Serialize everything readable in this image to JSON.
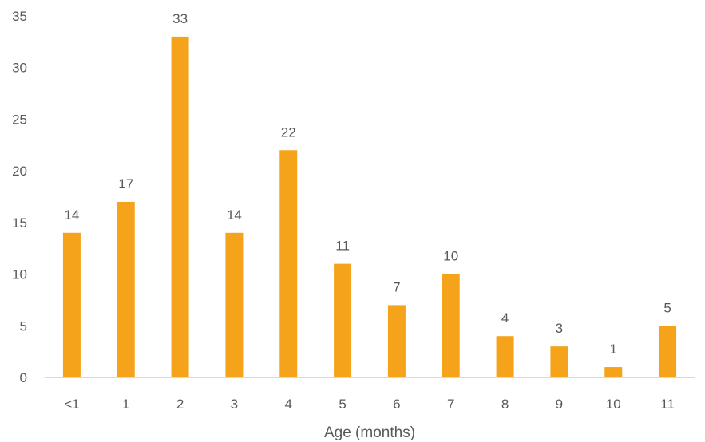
{
  "chart_data": {
    "type": "bar",
    "title": "",
    "xlabel": "Age (months)",
    "ylabel": "",
    "categories": [
      "<1",
      "1",
      "2",
      "3",
      "4",
      "5",
      "6",
      "7",
      "8",
      "9",
      "10",
      "11"
    ],
    "values": [
      14,
      17,
      33,
      14,
      22,
      11,
      7,
      10,
      4,
      3,
      1,
      5
    ],
    "ylim": [
      0,
      35
    ],
    "yticks": [
      0,
      5,
      10,
      15,
      20,
      25,
      30,
      35
    ],
    "data_labels": true,
    "grid": false,
    "legend": "none",
    "bar_color": "#F5A31A",
    "axis_color": "#D9D9D9",
    "text_color": "#595959"
  }
}
